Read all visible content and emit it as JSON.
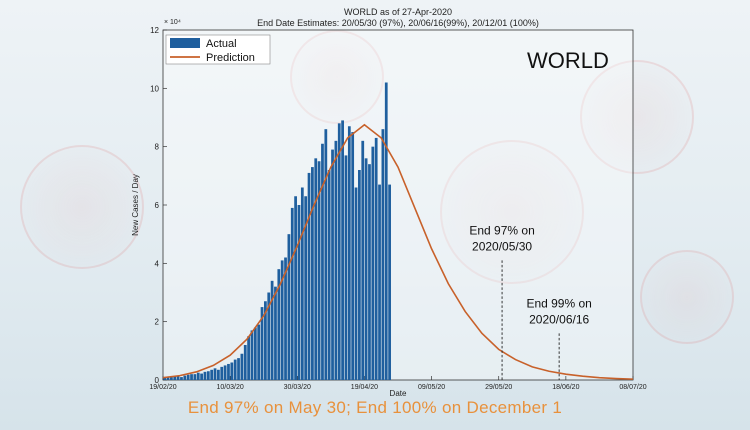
{
  "chart_data": {
    "type": "bar",
    "title": "WORLD as of 27-Apr-2020",
    "subtitle": "End Date Estimates: 20/05/30 (97%), 20/06/16(99%), 20/12/01 (100%)",
    "ylabel": "New Cases / Day",
    "xlabel": "Date",
    "y_exponent_label": "× 10⁴",
    "ylim": [
      0,
      12
    ],
    "y_ticks": [
      "0",
      "2",
      "4",
      "6",
      "8",
      "10",
      "12"
    ],
    "y_tick_values": [
      0,
      2,
      4,
      6,
      8,
      10,
      12
    ],
    "x_tick_labels": [
      "19/02/20",
      "10/03/20",
      "30/03/20",
      "19/04/20",
      "09/05/20",
      "29/05/20",
      "18/06/20",
      "08/07/20"
    ],
    "x_tick_days": [
      0,
      20,
      40,
      60,
      80,
      100,
      120,
      140
    ],
    "x_start_label": "19/02/20",
    "x_range_days": [
      0,
      140
    ],
    "big_label": "WORLD",
    "legend": {
      "position": "top-left",
      "actual_label": "Actual",
      "prediction_label": "Prediction"
    },
    "series": [
      {
        "name": "Actual",
        "kind": "bar",
        "color": "#1f5f9e",
        "x_days": [
          0,
          1,
          2,
          3,
          4,
          5,
          6,
          7,
          8,
          9,
          10,
          11,
          12,
          13,
          14,
          15,
          16,
          17,
          18,
          19,
          20,
          21,
          22,
          23,
          24,
          25,
          26,
          27,
          28,
          29,
          30,
          31,
          32,
          33,
          34,
          35,
          36,
          37,
          38,
          39,
          40,
          41,
          42,
          43,
          44,
          45,
          46,
          47,
          48,
          49,
          50,
          51,
          52,
          53,
          54,
          55,
          56,
          57,
          58,
          59,
          60,
          61,
          62,
          63,
          64,
          65,
          66,
          67
        ],
        "values": [
          0.1,
          0.1,
          0.1,
          0.12,
          0.12,
          0.1,
          0.15,
          0.18,
          0.2,
          0.2,
          0.25,
          0.22,
          0.28,
          0.3,
          0.35,
          0.4,
          0.35,
          0.45,
          0.5,
          0.55,
          0.6,
          0.7,
          0.75,
          0.9,
          1.2,
          1.5,
          1.7,
          1.8,
          1.9,
          2.5,
          2.7,
          3.0,
          3.4,
          3.2,
          3.8,
          4.1,
          4.2,
          5.0,
          5.9,
          6.3,
          6.0,
          6.6,
          6.3,
          7.1,
          7.3,
          7.6,
          7.5,
          8.1,
          8.6,
          7.2,
          7.9,
          8.2,
          8.8,
          8.9,
          7.7,
          8.7,
          8.5,
          6.6,
          7.2,
          8.2,
          7.6,
          7.4,
          8.0,
          8.3,
          6.7,
          8.6,
          10.2,
          6.7
        ]
      },
      {
        "name": "Prediction",
        "kind": "line",
        "color": "#c8612a",
        "x_days": [
          0,
          5,
          10,
          15,
          20,
          25,
          30,
          35,
          40,
          45,
          50,
          55,
          60,
          65,
          70,
          75,
          80,
          85,
          90,
          95,
          100,
          105,
          110,
          115,
          120,
          125,
          130,
          135,
          140
        ],
        "values": [
          0.08,
          0.15,
          0.28,
          0.5,
          0.85,
          1.4,
          2.2,
          3.3,
          4.6,
          6.0,
          7.3,
          8.3,
          8.75,
          8.3,
          7.3,
          5.9,
          4.5,
          3.3,
          2.35,
          1.6,
          1.05,
          0.7,
          0.45,
          0.3,
          0.2,
          0.13,
          0.08,
          0.05,
          0.03
        ]
      }
    ],
    "annotations": [
      {
        "line1": "End 97% on",
        "line2": "2020/05/30",
        "x_day": 101,
        "y_top": 4.1
      },
      {
        "line1": "End 99% on",
        "line2": "2020/06/16",
        "x_day": 118,
        "y_top": 1.6
      }
    ]
  },
  "caption": "End 97% on May 30; End 100% on December 1"
}
